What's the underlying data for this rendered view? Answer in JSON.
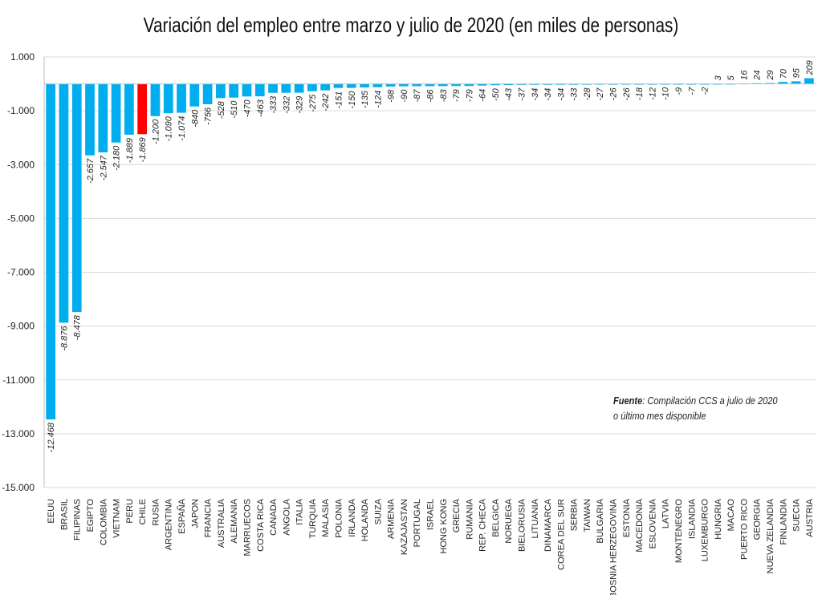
{
  "chart_data": {
    "type": "bar",
    "title": "Variación del empleo entre marzo y julio de 2020 (en miles de personas)",
    "xlabel": "",
    "ylabel": "",
    "ylim": [
      -15000,
      1000
    ],
    "yticks": [
      1000,
      -1000,
      -3000,
      -5000,
      -7000,
      -9000,
      -11000,
      -13000,
      -15000
    ],
    "ytick_labels": [
      "1.000",
      "-1.000",
      "-3.000",
      "-5.000",
      "-7.000",
      "-9.000",
      "-11.000",
      "-13.000",
      "-15.000"
    ],
    "grid": true,
    "colors": {
      "default": "#00AEEF",
      "highlight": "#FF0000"
    },
    "highlight": "CHILE",
    "categories": [
      "EEUU",
      "BRASIL",
      "FILIPINAS",
      "EGIPTO",
      "COLOMBIA",
      "VIETNAM",
      "PERU",
      "CHILE",
      "RUSIA",
      "ARGENTINA",
      "ESPAÑA",
      "JAPON",
      "FRANCIA",
      "AUSTRALIA",
      "ALEMANIA",
      "MARRUECOS",
      "COSTA RICA",
      "CANADA",
      "ANGOLA",
      "ITALIA",
      "TURQUIA",
      "MALASIA",
      "POLONIA",
      "IRLANDA",
      "HOLANDA",
      "SUIZA",
      "ARMENIA",
      "KAZAJASTAN",
      "PORTUGAL",
      "ISRAEL",
      "HONG KONG",
      "GRECIA",
      "RUMANIA",
      "REP. CHECA",
      "BELGICA",
      "NORUEGA",
      "BIELORUSIA",
      "LITUANIA",
      "DINAMARCA",
      "COREA DEL SUR",
      "SERBIA",
      "TAIWAN",
      "BULGARIA",
      "BOSNIA HERZEGOVINA",
      "ESTONIA",
      "MACEDONIA",
      "ESLOVENIA",
      "LATVIA",
      "MONTENEGRO",
      "ISLANDIA",
      "LUXEMBURGO",
      "HUNGRIA",
      "MACAO",
      "PUERTO RICO",
      "GEORGIA",
      "NUEVA ZELANDIA",
      "FINLANDIA",
      "SUECIA",
      "AUSTRIA"
    ],
    "values": [
      -12468,
      -8876,
      -8478,
      -2657,
      -2547,
      -2180,
      -1889,
      -1869,
      -1200,
      -1090,
      -1074,
      -840,
      -756,
      -528,
      -510,
      -470,
      -463,
      -333,
      -332,
      -329,
      -275,
      -242,
      -151,
      -150,
      -135,
      -124,
      -98,
      -90,
      -87,
      -86,
      -83,
      -79,
      -79,
      -64,
      -50,
      -43,
      -37,
      -34,
      -34,
      -34,
      -33,
      -28,
      -27,
      -26,
      -26,
      -18,
      -12,
      -10,
      -9,
      -7,
      -2,
      3,
      5,
      16,
      24,
      29,
      70,
      95,
      209
    ],
    "value_labels": [
      "-12.468",
      "-8.876",
      "-8.478",
      "-2.657",
      "-2.547",
      "-2.180",
      "-1.889",
      "-1.869",
      "-1.200",
      "-1.090",
      "-1.074",
      "-840",
      "-756",
      "-528",
      "-510",
      "-470",
      "-463",
      "-333",
      "-332",
      "-329",
      "-275",
      "-242",
      "-151",
      "-150",
      "-135",
      "-124",
      "-98",
      "-90",
      "-87",
      "-86",
      "-83",
      "-79",
      "-79",
      "-64",
      "-50",
      "-43",
      "-37",
      "-34",
      "-34",
      "-34",
      "-33",
      "-28",
      "-27",
      "-26",
      "-26",
      "-18",
      "-12",
      "-10",
      "-9",
      "-7",
      "-2",
      "3",
      "5",
      "16",
      "24",
      "29",
      "70",
      "95",
      "209"
    ]
  },
  "source": {
    "label": "Fuente",
    "text": ": Compilación CCS a julio de 2020",
    "line2": "o último mes disponible"
  }
}
